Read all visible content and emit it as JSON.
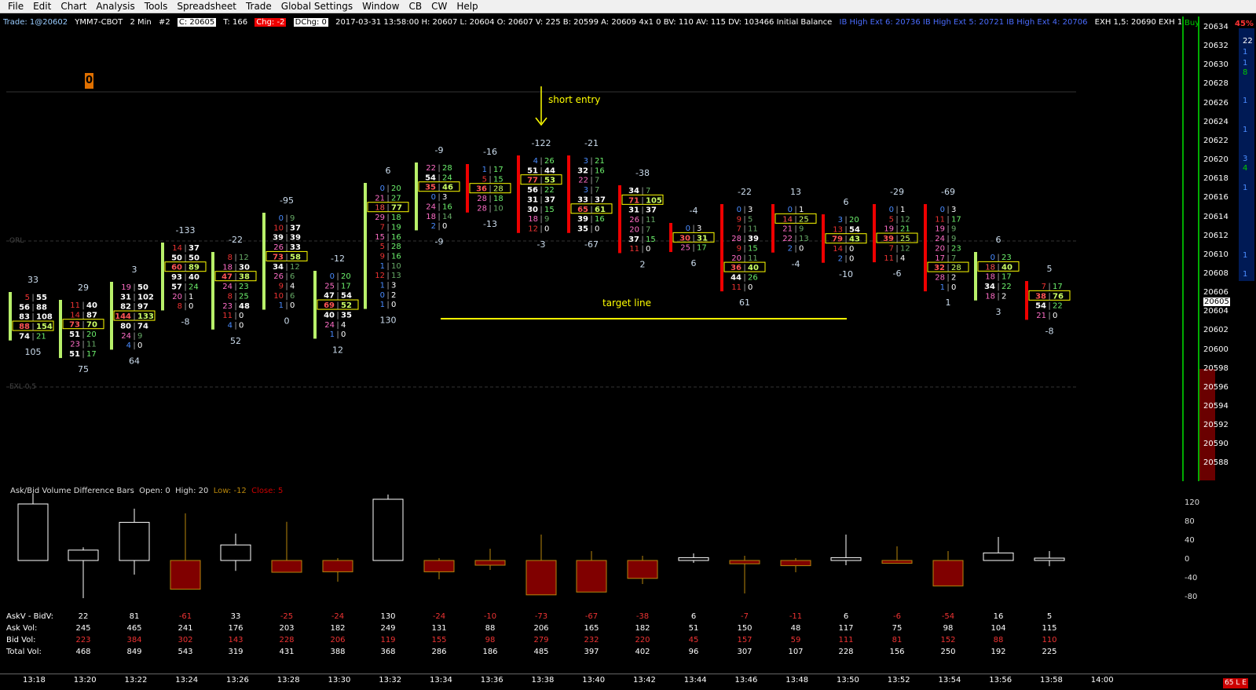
{
  "menu": [
    "File",
    "Edit",
    "Chart",
    "Analysis",
    "Tools",
    "Spreadsheet",
    "Trade",
    "Global Settings",
    "Window",
    "CB",
    "CW",
    "Help"
  ],
  "info": {
    "trade": "Trade: 1@20602",
    "symbol": "YMM7-CBOT",
    "interval": "2 Min",
    "num": "#2",
    "c": "C: 20605",
    "t": "T: 166",
    "chg": "Chg: -2",
    "dchg": "DChg: 0",
    "stats": "2017-03-31 13:58:00  H: 20607  L: 20604  O: 20607  V: 225  B: 20599  A: 20609  4x1 0  BV: 110  AV: 115  DV: 103466  Initial Balance",
    "ib": "IB High Ext 6: 20736  IB High Ext 5: 20721  IB High Ext 4: 20706",
    "ext": "EXH 1,5: 20690  EXH 1,0: 20674  EXH 0,5: 20659  ORH: 20643  IB Mid: 20628  O"
  },
  "marker": "0",
  "annotations": {
    "short_entry": "short entry",
    "target_line": "target line",
    "orl": "ORL",
    "exl": "EXL 0,5"
  },
  "scale": {
    "buy": "Buy",
    "pct": "45%",
    "prices": [
      "20634",
      "20632",
      "20630",
      "20628",
      "20626",
      "20624",
      "20622",
      "20620",
      "20618",
      "20616",
      "20614",
      "20612",
      "20610",
      "20608",
      "20606",
      "20605",
      "20604",
      "20602",
      "20600",
      "20598",
      "20596",
      "20594",
      "20592",
      "20590",
      "20588"
    ],
    "counts": [
      "22",
      "1",
      "1",
      "8",
      "1",
      "1",
      "3",
      "4",
      "1",
      "1",
      "1"
    ]
  },
  "bars": [
    {
      "top": "33",
      "bottom": "105",
      "rows": [
        [
          "5",
          "55"
        ],
        [
          "56",
          "88"
        ],
        [
          "83",
          "108"
        ],
        [
          "88",
          "154"
        ],
        [
          "74",
          "21"
        ]
      ],
      "poc": 3
    },
    {
      "top": "29",
      "bottom": "75",
      "rows": [
        [
          "11",
          "40"
        ],
        [
          "14",
          "87"
        ],
        [
          "73",
          "70"
        ],
        [
          "51",
          "20"
        ],
        [
          "23",
          "11"
        ],
        [
          "51",
          "17"
        ]
      ],
      "poc": 2
    },
    {
      "top": "3",
      "bottom": "64",
      "rows": [
        [
          "19",
          "50"
        ],
        [
          "31",
          "102"
        ],
        [
          "82",
          "97"
        ],
        [
          "144",
          "133"
        ],
        [
          "80",
          "74"
        ],
        [
          "24",
          "9"
        ],
        [
          "4",
          "0"
        ]
      ],
      "poc": 3
    },
    {
      "top": "-133",
      "bottom": "-8",
      "rows": [
        [
          "14",
          "37"
        ],
        [
          "50",
          "50"
        ],
        [
          "60",
          "89"
        ],
        [
          "93",
          "40"
        ],
        [
          "57",
          "24"
        ],
        [
          "20",
          "1"
        ],
        [
          "8",
          "0"
        ]
      ],
      "poc": 2
    },
    {
      "top": "-22",
      "bottom": "52",
      "rows": [
        [
          "8",
          "12"
        ],
        [
          "18",
          "30"
        ],
        [
          "47",
          "38"
        ],
        [
          "24",
          "23"
        ],
        [
          "8",
          "25"
        ],
        [
          "23",
          "48"
        ],
        [
          "11",
          "0"
        ],
        [
          "4",
          "0"
        ]
      ],
      "poc": 2
    },
    {
      "top": "-95",
      "bottom": "0",
      "rows": [
        [
          "0",
          "9"
        ],
        [
          "10",
          "37"
        ],
        [
          "39",
          "39"
        ],
        [
          "26",
          "33"
        ],
        [
          "73",
          "58"
        ],
        [
          "34",
          "12"
        ],
        [
          "26",
          "6"
        ],
        [
          "9",
          "4"
        ],
        [
          "10",
          "6"
        ],
        [
          "1",
          "0"
        ]
      ],
      "poc": 4
    },
    {
      "top": "-12",
      "bottom": "12",
      "rows": [
        [
          "0",
          "20"
        ],
        [
          "25",
          "17"
        ],
        [
          "47",
          "54"
        ],
        [
          "69",
          "52"
        ],
        [
          "40",
          "35"
        ],
        [
          "24",
          "4"
        ],
        [
          "1",
          "0"
        ]
      ],
      "poc": 3
    },
    {
      "top": "6",
      "bottom": "130",
      "rows": [
        [
          "0",
          "20"
        ],
        [
          "21",
          "27"
        ],
        [
          "18",
          "77"
        ],
        [
          "29",
          "18"
        ],
        [
          "7",
          "19"
        ],
        [
          "15",
          "16"
        ],
        [
          "5",
          "28"
        ],
        [
          "9",
          "16"
        ],
        [
          "1",
          "10"
        ],
        [
          "12",
          "13"
        ],
        [
          "1",
          "3"
        ],
        [
          "0",
          "2"
        ],
        [
          "1",
          "0"
        ]
      ],
      "poc": 2
    },
    {
      "top": "-9",
      "bottom": "-9",
      "rows": [
        [
          "22",
          "28"
        ],
        [
          "54",
          "24"
        ],
        [
          "35",
          "46"
        ],
        [
          "0",
          "3"
        ],
        [
          "24",
          "16"
        ],
        [
          "18",
          "14"
        ],
        [
          "2",
          "0"
        ]
      ],
      "poc": 2
    },
    {
      "top": "-16",
      "bottom": "-13",
      "rows": [
        [
          "1",
          "17"
        ],
        [
          "5",
          "15"
        ],
        [
          "36",
          "28"
        ],
        [
          "28",
          "18"
        ],
        [
          "28",
          "10"
        ]
      ],
      "poc": 2
    },
    {
      "top": "-122",
      "bottom": "-3",
      "rows": [
        [
          "4",
          "26"
        ],
        [
          "51",
          "44"
        ],
        [
          "77",
          "53"
        ],
        [
          "56",
          "22"
        ],
        [
          "31",
          "37"
        ],
        [
          "30",
          "15"
        ],
        [
          "18",
          "9"
        ],
        [
          "12",
          "0"
        ]
      ],
      "poc": 2
    },
    {
      "top": "-21",
      "bottom": "-67",
      "rows": [
        [
          "3",
          "21"
        ],
        [
          "32",
          "16"
        ],
        [
          "22",
          "7"
        ],
        [
          "3",
          "7"
        ],
        [
          "33",
          "37"
        ],
        [
          "65",
          "61"
        ],
        [
          "39",
          "16"
        ],
        [
          "35",
          "0"
        ]
      ],
      "poc": 5
    },
    {
      "top": "-38",
      "bottom": "2",
      "rows": [
        [
          "34",
          "7"
        ],
        [
          "71",
          "105"
        ],
        [
          "31",
          "37"
        ],
        [
          "26",
          "11"
        ],
        [
          "20",
          "7"
        ],
        [
          "37",
          "15"
        ],
        [
          "11",
          "0"
        ]
      ],
      "poc": 1
    },
    {
      "top": "-4",
      "bottom": "6",
      "rows": [
        [
          "0",
          "3"
        ],
        [
          "30",
          "31"
        ],
        [
          "25",
          "17"
        ]
      ],
      "poc": 1
    },
    {
      "top": "-22",
      "bottom": "61",
      "rows": [
        [
          "0",
          "3"
        ],
        [
          "9",
          "5"
        ],
        [
          "7",
          "11"
        ],
        [
          "28",
          "39"
        ],
        [
          "9",
          "15"
        ],
        [
          "20",
          "11"
        ],
        [
          "36",
          "40"
        ],
        [
          "44",
          "26"
        ],
        [
          "11",
          "0"
        ]
      ],
      "poc": 6
    },
    {
      "top": "13",
      "bottom": "-4",
      "rows": [
        [
          "0",
          "1"
        ],
        [
          "14",
          "25"
        ],
        [
          "21",
          "9"
        ],
        [
          "22",
          "13"
        ],
        [
          "2",
          "0"
        ]
      ],
      "poc": 1
    },
    {
      "top": "6",
      "bottom": "-10",
      "rows": [
        [
          "3",
          "20"
        ],
        [
          "13",
          "54"
        ],
        [
          "79",
          "43"
        ],
        [
          "14",
          "0"
        ],
        [
          "2",
          "0"
        ]
      ],
      "poc": 2
    },
    {
      "top": "-29",
      "bottom": "-6",
      "rows": [
        [
          "0",
          "1"
        ],
        [
          "5",
          "12"
        ],
        [
          "19",
          "21"
        ],
        [
          "39",
          "25"
        ],
        [
          "7",
          "12"
        ],
        [
          "11",
          "4"
        ]
      ],
      "poc": 3
    },
    {
      "top": "-69",
      "bottom": "1",
      "rows": [
        [
          "0",
          "3"
        ],
        [
          "11",
          "17"
        ],
        [
          "19",
          "9"
        ],
        [
          "24",
          "9"
        ],
        [
          "20",
          "23"
        ],
        [
          "17",
          "7"
        ],
        [
          "32",
          "28"
        ],
        [
          "28",
          "2"
        ],
        [
          "1",
          "0"
        ]
      ],
      "poc": 6
    },
    {
      "top": "6",
      "bottom": "3",
      "rows": [
        [
          "0",
          "23"
        ],
        [
          "18",
          "40"
        ],
        [
          "18",
          "17"
        ],
        [
          "34",
          "22"
        ],
        [
          "18",
          "2"
        ]
      ],
      "poc": 1
    },
    {
      "top": "5",
      "bottom": "-8",
      "rows": [
        [
          "7",
          "17"
        ],
        [
          "38",
          "76"
        ],
        [
          "54",
          "22"
        ],
        [
          "21",
          "0"
        ]
      ],
      "poc": 1
    }
  ],
  "lower": {
    "title": "Ask/Bid Volume Difference Bars",
    "open": "Open: 0",
    "high": "High: 20",
    "low": "Low: -12",
    "close": "Close: 5",
    "yticks": [
      "120",
      "80",
      "40",
      "0",
      "-40",
      "-80"
    ],
    "candles": [
      {
        "o": 0,
        "c": 120,
        "h": 143,
        "l": 0
      },
      {
        "o": 0,
        "c": 22,
        "h": 28,
        "l": -80
      },
      {
        "o": 0,
        "c": 81,
        "h": 110,
        "l": -30
      },
      {
        "o": 0,
        "c": -61,
        "h": 100,
        "l": -61
      },
      {
        "o": 0,
        "c": 33,
        "h": 57,
        "l": -22
      },
      {
        "o": 0,
        "c": -25,
        "h": 82,
        "l": -25
      },
      {
        "o": 0,
        "c": -24,
        "h": 5,
        "l": -45
      },
      {
        "o": 0,
        "c": 130,
        "h": 140,
        "l": 0
      },
      {
        "o": 0,
        "c": -24,
        "h": 5,
        "l": -40
      },
      {
        "o": 0,
        "c": -10,
        "h": 25,
        "l": -20
      },
      {
        "o": 0,
        "c": -73,
        "h": 55,
        "l": -73
      },
      {
        "o": 0,
        "c": -67,
        "h": 20,
        "l": -67
      },
      {
        "o": 0,
        "c": -38,
        "h": 10,
        "l": -50
      },
      {
        "o": 0,
        "c": 6,
        "h": 15,
        "l": -5
      },
      {
        "o": 0,
        "c": -7,
        "h": 10,
        "l": -70
      },
      {
        "o": 0,
        "c": -11,
        "h": 5,
        "l": -25
      },
      {
        "o": 0,
        "c": 6,
        "h": 55,
        "l": -10
      },
      {
        "o": 0,
        "c": -6,
        "h": 30,
        "l": -6
      },
      {
        "o": 0,
        "c": -54,
        "h": 20,
        "l": -54
      },
      {
        "o": 0,
        "c": 16,
        "h": 50,
        "l": 0
      },
      {
        "o": 0,
        "c": 5,
        "h": 20,
        "l": -12
      }
    ]
  },
  "stats": {
    "labels": [
      "AskV - BidV:",
      "Ask Vol:",
      "Bid Vol:",
      "Total Vol:"
    ],
    "diff": [
      "22",
      "81",
      "-61",
      "33",
      "-25",
      "-24",
      "130",
      "-24",
      "-10",
      "-73",
      "-67",
      "-38",
      "6",
      "-7",
      "-11",
      "6",
      "-6",
      "-54",
      "16",
      "5"
    ],
    "ask": [
      "245",
      "465",
      "241",
      "176",
      "203",
      "182",
      "249",
      "131",
      "88",
      "206",
      "165",
      "182",
      "51",
      "150",
      "48",
      "117",
      "75",
      "98",
      "104",
      "115"
    ],
    "bid": [
      "223",
      "384",
      "302",
      "143",
      "228",
      "206",
      "119",
      "155",
      "98",
      "279",
      "232",
      "220",
      "45",
      "157",
      "59",
      "111",
      "81",
      "152",
      "88",
      "110"
    ],
    "total": [
      "468",
      "849",
      "543",
      "319",
      "431",
      "388",
      "368",
      "286",
      "186",
      "485",
      "397",
      "402",
      "96",
      "307",
      "107",
      "228",
      "156",
      "250",
      "192",
      "225"
    ]
  },
  "times": [
    "13:18",
    "13:20",
    "13:22",
    "13:24",
    "13:26",
    "13:28",
    "13:30",
    "13:32",
    "13:34",
    "13:36",
    "13:38",
    "13:40",
    "13:42",
    "13:44",
    "13:46",
    "13:48",
    "13:50",
    "13:52",
    "13:54",
    "13:56",
    "13:58",
    "14:00"
  ],
  "corner": "65 L E"
}
